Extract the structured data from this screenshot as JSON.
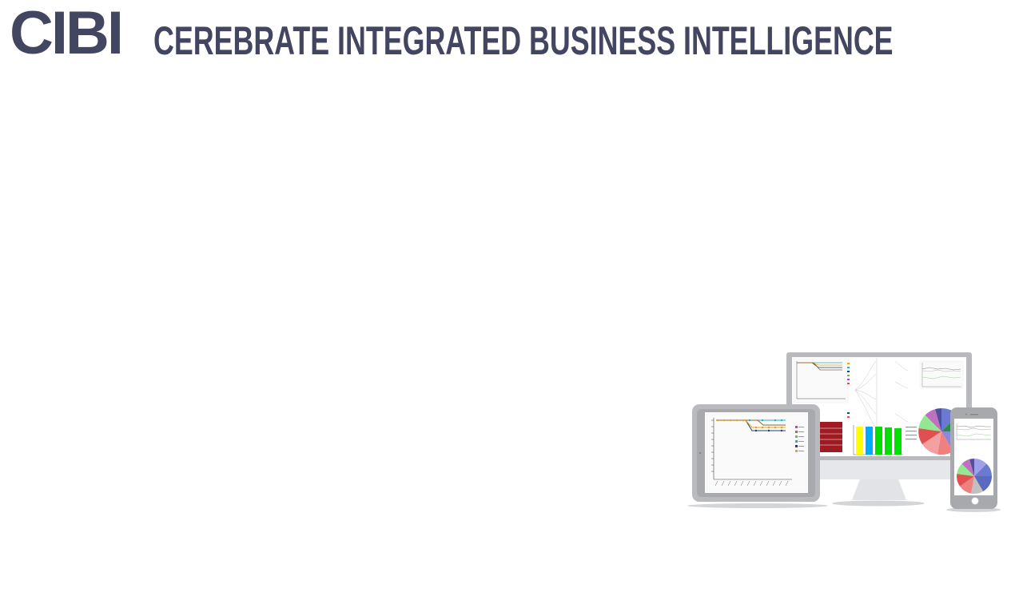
{
  "header": {
    "logo": "CIBI",
    "tagline": "CEREBRATE INTEGRATED BUSINESS INTELLIGENCE"
  },
  "illustration": {
    "colors": {
      "brand": "#434660",
      "device_frame": "#b9babd",
      "device_frame_dark": "#a8a9ac",
      "screen_bg": "#ffffff",
      "table_red": "#a01a22",
      "bar_yellow": "#ffff00",
      "bar_blue": "#00aaff",
      "bar_green": "#00e000",
      "line_orange": "#f0a020",
      "line_teal": "#20b0c0",
      "line_navy": "#2a3a7a"
    }
  }
}
